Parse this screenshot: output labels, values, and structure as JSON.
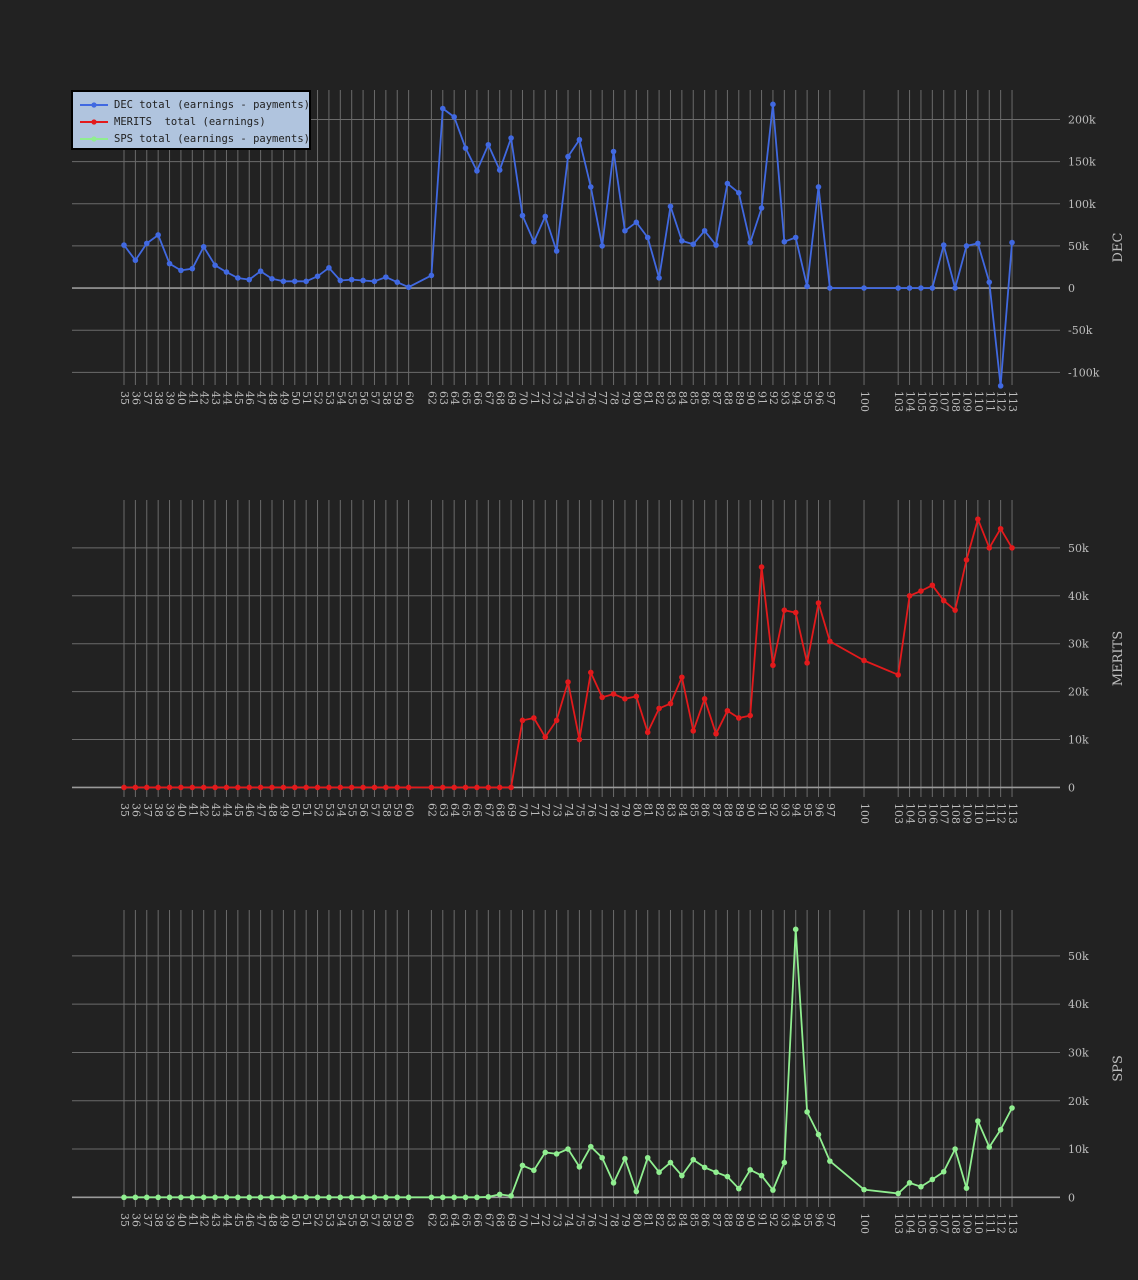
{
  "legend": {
    "items": [
      {
        "label": "DEC total (earnings - payments)",
        "color": "#4169e1"
      },
      {
        "label": "MERITS  total (earnings)",
        "color": "#e31a1c"
      },
      {
        "label": "SPS total (earnings - payments)",
        "color": "#90ee90"
      }
    ]
  },
  "chart_data": [
    {
      "type": "line",
      "ylabel": "DEC",
      "color": "#4169e1",
      "ylim": [
        -115000,
        235000
      ],
      "yticks": [
        -100000,
        -50000,
        0,
        50000,
        100000,
        150000,
        200000
      ],
      "ytick_labels": [
        "-100k",
        "-50k",
        "0",
        "50k",
        "100k",
        "150k",
        "200k"
      ],
      "x": [
        35,
        36,
        37,
        38,
        39,
        40,
        41,
        42,
        43,
        44,
        45,
        46,
        47,
        48,
        49,
        50,
        51,
        52,
        53,
        54,
        55,
        56,
        57,
        58,
        59,
        60,
        62,
        63,
        64,
        65,
        66,
        67,
        68,
        69,
        70,
        71,
        72,
        73,
        74,
        75,
        76,
        77,
        78,
        79,
        80,
        81,
        82,
        83,
        84,
        85,
        86,
        87,
        88,
        89,
        90,
        91,
        92,
        93,
        94,
        95,
        96,
        97,
        100,
        103,
        104,
        105,
        106,
        107,
        108,
        109,
        110,
        111,
        112,
        113
      ],
      "values": [
        51000,
        33000,
        53000,
        63000,
        29000,
        21000,
        23000,
        49000,
        27000,
        19000,
        12000,
        10000,
        20000,
        11000,
        8000,
        8000,
        8000,
        14000,
        24000,
        9000,
        10000,
        9000,
        8000,
        13000,
        7000,
        1000,
        15000,
        213000,
        203000,
        166000,
        139000,
        170000,
        140000,
        178000,
        86000,
        55000,
        85000,
        44000,
        156000,
        176000,
        120000,
        50000,
        162000,
        68000,
        78000,
        60000,
        12000,
        97000,
        56000,
        52000,
        68000,
        51000,
        124000,
        113000,
        54000,
        95000,
        218000,
        55000,
        60000,
        2000,
        120000,
        0,
        0,
        0,
        0,
        0,
        0,
        51000,
        0,
        50000,
        53000,
        7000,
        -116000,
        54000
      ]
    },
    {
      "type": "line",
      "ylabel": "MERITS",
      "color": "#e31a1c",
      "ylim": [
        -2000,
        60000
      ],
      "yticks": [
        0,
        10000,
        20000,
        30000,
        40000,
        50000
      ],
      "ytick_labels": [
        "0",
        "10k",
        "20k",
        "30k",
        "40k",
        "50k"
      ],
      "x": [
        35,
        36,
        37,
        38,
        39,
        40,
        41,
        42,
        43,
        44,
        45,
        46,
        47,
        48,
        49,
        50,
        51,
        52,
        53,
        54,
        55,
        56,
        57,
        58,
        59,
        60,
        62,
        63,
        64,
        65,
        66,
        67,
        68,
        69,
        70,
        71,
        72,
        73,
        74,
        75,
        76,
        77,
        78,
        79,
        80,
        81,
        82,
        83,
        84,
        85,
        86,
        87,
        88,
        89,
        90,
        91,
        92,
        93,
        94,
        95,
        96,
        97,
        100,
        103,
        104,
        105,
        106,
        107,
        108,
        109,
        110,
        111,
        112,
        113
      ],
      "values": [
        0,
        0,
        0,
        0,
        0,
        0,
        0,
        0,
        0,
        0,
        0,
        0,
        0,
        0,
        0,
        0,
        0,
        0,
        0,
        0,
        0,
        0,
        0,
        0,
        0,
        0,
        0,
        0,
        0,
        0,
        0,
        0,
        0,
        0,
        14000,
        14500,
        10500,
        14000,
        22000,
        10000,
        24000,
        18800,
        19500,
        18500,
        19000,
        11500,
        16500,
        17500,
        23000,
        11800,
        18500,
        11200,
        16000,
        14500,
        15000,
        46000,
        25500,
        37000,
        36500,
        26000,
        38500,
        30500,
        26500,
        23500,
        40000,
        41000,
        42200,
        39000,
        37000,
        47500,
        56000,
        50000,
        54000,
        50000
      ]
    },
    {
      "type": "line",
      "ylabel": "SPS",
      "color": "#90ee90",
      "ylim": [
        -2000,
        59500
      ],
      "yticks": [
        0,
        10000,
        20000,
        30000,
        40000,
        50000
      ],
      "ytick_labels": [
        "0",
        "10k",
        "20k",
        "30k",
        "40k",
        "50k"
      ],
      "x": [
        35,
        36,
        37,
        38,
        39,
        40,
        41,
        42,
        43,
        44,
        45,
        46,
        47,
        48,
        49,
        50,
        51,
        52,
        53,
        54,
        55,
        56,
        57,
        58,
        59,
        60,
        62,
        63,
        64,
        65,
        66,
        67,
        68,
        69,
        70,
        71,
        72,
        73,
        74,
        75,
        76,
        77,
        78,
        79,
        80,
        81,
        82,
        83,
        84,
        85,
        86,
        87,
        88,
        89,
        90,
        91,
        92,
        93,
        94,
        95,
        96,
        97,
        100,
        103,
        104,
        105,
        106,
        107,
        108,
        109,
        110,
        111,
        112,
        113
      ],
      "values": [
        0,
        0,
        0,
        0,
        0,
        0,
        0,
        0,
        0,
        0,
        0,
        0,
        0,
        0,
        0,
        0,
        0,
        0,
        0,
        0,
        0,
        0,
        0,
        0,
        0,
        0,
        0,
        0,
        0,
        0,
        0,
        100,
        600,
        300,
        6600,
        5600,
        9300,
        9000,
        10000,
        6300,
        10500,
        8200,
        3000,
        8000,
        1200,
        8200,
        5200,
        7200,
        4500,
        7800,
        6200,
        5200,
        4300,
        1800,
        5700,
        4500,
        1500,
        7200,
        55500,
        17700,
        13000,
        7500,
        1600,
        800,
        3000,
        2200,
        3700,
        5300,
        10000,
        1900,
        15800,
        10400,
        14000,
        18500
      ]
    }
  ]
}
